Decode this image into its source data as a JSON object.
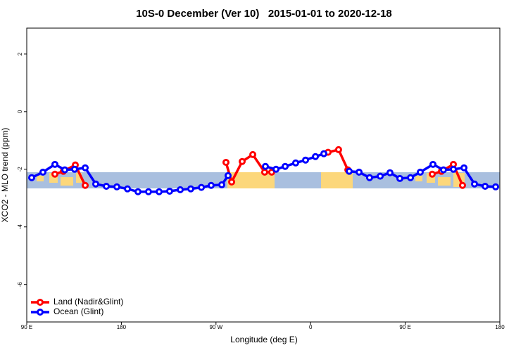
{
  "chart_data": {
    "type": "line",
    "title": "10S-0 December (Ver 10)   2015-01-01 to 2020-12-18",
    "x_label": "Longitude (deg E)",
    "y_label": "XCO2 - MLO trend (ppm)",
    "xlim": [
      90,
      540
    ],
    "xticks": [
      {
        "value": 90,
        "label": "90 E"
      },
      180,
      {
        "value": 270,
        "label": "90 W"
      },
      {
        "value": 360,
        "label": "0"
      },
      {
        "value": 450,
        "label": "90 E"
      },
      {
        "value": 540,
        "label": "180"
      }
    ],
    "ylim": [
      -7.3,
      2.9
    ],
    "yticks": [
      -6,
      -4,
      -2,
      0,
      2
    ],
    "legend": "bottom-left",
    "series": [
      {
        "name": "Land (Nadir&Glint)",
        "color": "#ff0000",
        "x": [
          116.8,
          124.8,
          136.2,
          145.6,
          null,
          279.5,
          284.9,
          294.9,
          305,
          316.3,
          323,
          null,
          376.6,
          386.6,
          395.4,
          null,
          475.7,
          484.4,
          495.8,
          504.5
        ],
        "values": [
          -2.17,
          -2.07,
          -1.85,
          -2.56,
          null,
          -1.76,
          -2.44,
          -1.73,
          -1.49,
          -2.1,
          -2.1,
          null,
          -1.41,
          -1.32,
          -2.02,
          null,
          -2.17,
          -2.07,
          -1.83,
          -2.56
        ]
      },
      {
        "name": "Ocean (Glint)",
        "color": "#0000ff",
        "x": [
          94.7,
          105.4,
          116.8,
          126.2,
          135.5,
          145.6,
          155.6,
          165.7,
          175.7,
          185.8,
          195.8,
          205.8,
          215.9,
          225.9,
          236,
          246,
          256.1,
          265.4,
          275.5,
          281.5,
          null,
          317,
          327.1,
          335.8,
          345.8,
          355.2,
          364.6,
          372.6,
          null,
          396.7,
          406.1,
          416.1,
          426.2,
          435.5,
          444.9,
          455,
          464.3,
          476.4,
          486.4,
          495.8,
          505.9,
          515.9,
          526,
          536
        ],
        "values": [
          -2.29,
          -2.1,
          -1.83,
          -2.02,
          -2.0,
          -1.95,
          -2.51,
          -2.59,
          -2.61,
          -2.68,
          -2.78,
          -2.78,
          -2.78,
          -2.76,
          -2.71,
          -2.68,
          -2.63,
          -2.56,
          -2.54,
          -2.22,
          null,
          -1.9,
          -2.0,
          -1.9,
          -1.78,
          -1.68,
          -1.56,
          -1.46,
          null,
          -2.07,
          -2.1,
          -2.29,
          -2.24,
          -2.12,
          -2.32,
          -2.29,
          -2.1,
          -1.83,
          -2.02,
          -2.0,
          -1.95,
          -2.51,
          -2.59,
          -2.61
        ]
      }
    ]
  }
}
